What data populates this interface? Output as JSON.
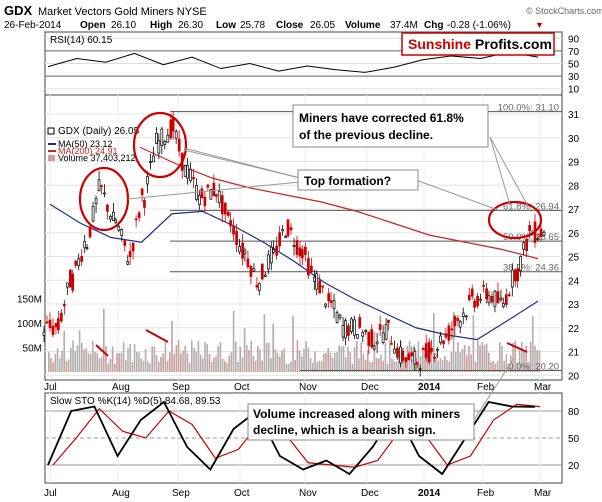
{
  "header": {
    "ticker": "GDX",
    "name": "Market Vectors Gold Miners NYSE",
    "watermark": "© StockCharts.com",
    "date": "26-Feb-2014",
    "open_label": "Open",
    "open": "26.10",
    "high_label": "High",
    "high": "26.30",
    "low_label": "Low",
    "low": "25.78",
    "close_label": "Close",
    "close": "26.05",
    "volume_label": "Volume",
    "volume": "37.4M",
    "chg_label": "Chg",
    "chg": "-0.28 (-1.06%)",
    "chg_marker": "▼"
  },
  "logo": {
    "part1": "Sunshine",
    "part2": " Profits.com",
    "color1": "#cc0000",
    "color2": "#000000"
  },
  "rsi": {
    "label": "RSI(14) 60.15",
    "ylim": [
      0,
      100
    ],
    "ticks": [
      "90",
      "70",
      "50",
      "30",
      "10"
    ],
    "tick_values": [
      90,
      70,
      50,
      30,
      10
    ]
  },
  "price": {
    "legend_ticker": "GDX (Daily) 26.05",
    "legend_ma50": "MA(50) 23.12",
    "legend_ma200": "MA(200) 24.91",
    "legend_volume": "Volume 37,403,212",
    "ticks": [
      "31",
      "30",
      "29",
      "28",
      "27",
      "26",
      "25",
      "24",
      "23",
      "22",
      "21",
      "20"
    ],
    "tick_values": [
      31,
      30,
      29,
      28,
      27,
      26,
      25,
      24,
      23,
      22,
      21,
      20
    ],
    "vol_ticks": [
      "150M",
      "100M",
      "50M"
    ],
    "vol_tick_values": [
      150,
      100,
      50
    ],
    "colors": {
      "up": "#000000",
      "down": "#cc0000",
      "ma50": "#1f2d8a",
      "ma200": "#cc2222",
      "volume": "#c8a0a0"
    },
    "fib_levels": [
      {
        "label": "100.0%: 31.10",
        "value": 31.1
      },
      {
        "label": "61.8%: 26.94",
        "value": 26.94
      },
      {
        "label": "50.0%: 25.65",
        "value": 25.65
      },
      {
        "label": "38.2%: 24.36",
        "value": 24.36
      },
      {
        "label": "0.0%: 20.20",
        "value": 20.2
      }
    ]
  },
  "annotations": {
    "miners": "Miners have corrected 61.8% of the previous decline.",
    "miners_line1": "Miners have corrected 61.8%",
    "miners_line2": "of the previous decline.",
    "top": "Top formation?",
    "volume_line1": "Volume increased along with miners",
    "volume_line2": "decline, which is a bearish sign."
  },
  "sto": {
    "label": "Slow STO %K(14) %D(5) 84.68, 89.53",
    "ticks": [
      "80",
      "50",
      "20"
    ],
    "tick_values": [
      80,
      50,
      20
    ]
  },
  "x_axis": {
    "labels": [
      "Jul",
      "Aug",
      "Sep",
      "Oct",
      "Nov",
      "Dec",
      "2014",
      "Feb",
      "Mar"
    ]
  },
  "chart_data": {
    "type": "candlestick",
    "title": "GDX Market Vectors Gold Miners NYSE",
    "dates_range": [
      "2013-07-01",
      "2014-02-26"
    ],
    "close_series_approx": [
      {
        "x": "2013-07-01",
        "y": 22.0
      },
      {
        "x": "2013-07-08",
        "y": 24.0
      },
      {
        "x": "2013-07-15",
        "y": 25.6
      },
      {
        "x": "2013-07-22",
        "y": 27.8
      },
      {
        "x": "2013-07-29",
        "y": 26.5
      },
      {
        "x": "2013-08-05",
        "y": 25.0
      },
      {
        "x": "2013-08-12",
        "y": 27.5
      },
      {
        "x": "2013-08-19",
        "y": 29.8
      },
      {
        "x": "2013-08-26",
        "y": 30.4
      },
      {
        "x": "2013-09-02",
        "y": 28.6
      },
      {
        "x": "2013-09-09",
        "y": 27.5
      },
      {
        "x": "2013-09-16",
        "y": 27.8
      },
      {
        "x": "2013-09-23",
        "y": 26.5
      },
      {
        "x": "2013-09-30",
        "y": 25.2
      },
      {
        "x": "2013-10-07",
        "y": 24.0
      },
      {
        "x": "2013-10-14",
        "y": 25.0
      },
      {
        "x": "2013-10-21",
        "y": 26.2
      },
      {
        "x": "2013-10-28",
        "y": 25.3
      },
      {
        "x": "2013-11-04",
        "y": 24.0
      },
      {
        "x": "2013-11-11",
        "y": 23.0
      },
      {
        "x": "2013-11-18",
        "y": 22.0
      },
      {
        "x": "2013-11-25",
        "y": 22.0
      },
      {
        "x": "2013-12-02",
        "y": 21.5
      },
      {
        "x": "2013-12-09",
        "y": 21.9
      },
      {
        "x": "2013-12-16",
        "y": 20.8
      },
      {
        "x": "2013-12-23",
        "y": 20.6
      },
      {
        "x": "2013-12-30",
        "y": 21.0
      },
      {
        "x": "2014-01-06",
        "y": 21.6
      },
      {
        "x": "2014-01-13",
        "y": 22.4
      },
      {
        "x": "2014-01-20",
        "y": 23.2
      },
      {
        "x": "2014-01-27",
        "y": 23.4
      },
      {
        "x": "2014-02-03",
        "y": 23.0
      },
      {
        "x": "2014-02-10",
        "y": 24.4
      },
      {
        "x": "2014-02-17",
        "y": 26.0
      },
      {
        "x": "2014-02-26",
        "y": 26.05
      }
    ],
    "ma50_approx": [
      27.2,
      26.4,
      25.8,
      25.6,
      26.8,
      26.9,
      26.3,
      25.6,
      24.8,
      23.9,
      23.2,
      22.6,
      22.0,
      21.7,
      21.5,
      22.3,
      23.12
    ],
    "ma200_approx": [
      29.6,
      28.9,
      28.3,
      27.9,
      27.6,
      27.3,
      26.9,
      26.4,
      25.9,
      25.6,
      25.3,
      24.91
    ],
    "rsi_approx": [
      45,
      58,
      52,
      66,
      48,
      60,
      42,
      50,
      38,
      46,
      40,
      36,
      44,
      56,
      62,
      58,
      68,
      60.15
    ],
    "sto_k_approx": [
      20,
      80,
      85,
      30,
      70,
      90,
      40,
      15,
      60,
      80,
      30,
      15,
      25,
      10,
      40,
      80,
      30,
      10,
      50,
      90,
      85,
      84.68
    ],
    "ylim": [
      20,
      31.8
    ]
  }
}
